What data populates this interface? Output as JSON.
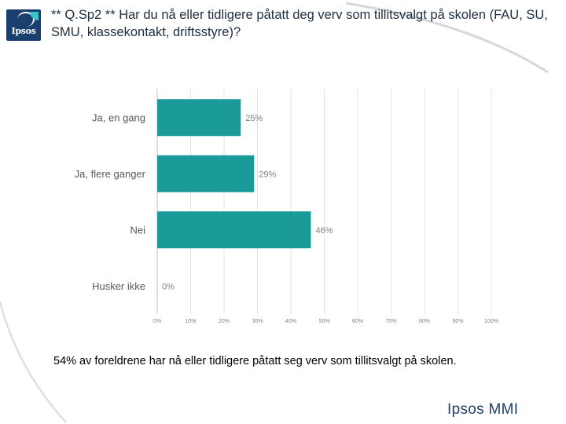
{
  "header": {
    "title": "** Q.Sp2 ** Har du nå eller tidligere påtatt deg verv som tillitsvalgt på skolen (FAU, SU, SMU, klassekontakt, driftsstyre)?",
    "logo_text": "Ipsos"
  },
  "chart_data": {
    "type": "bar",
    "orientation": "horizontal",
    "categories": [
      "Ja, en gang",
      "Ja, flere ganger",
      "Nei",
      "Husker ikke"
    ],
    "values": [
      25,
      29,
      46,
      0
    ],
    "value_labels": [
      "25%",
      "29%",
      "46%",
      "0%"
    ],
    "xlim": [
      0,
      100
    ],
    "xticks": [
      "0%",
      "10%",
      "20%",
      "30%",
      "40%",
      "50%",
      "60%",
      "70%",
      "80%",
      "90%",
      "100%"
    ],
    "grid": true,
    "bar_color": "#1b9a9a"
  },
  "summary": "54% av foreldrene har nå eller tidligere påtatt seg verv som tillitsvalgt på skolen.",
  "footer": {
    "brand": "Ipsos MMI"
  }
}
